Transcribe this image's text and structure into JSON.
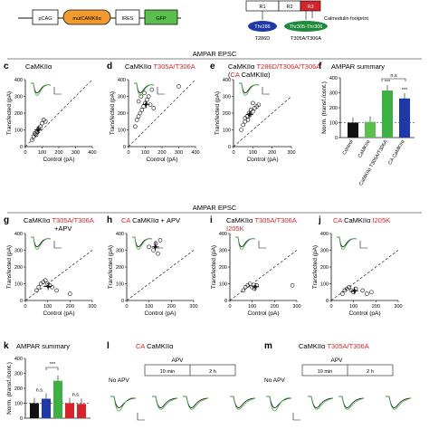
{
  "construct": {
    "boxes": [
      "pCAG",
      "mutCAMKIIα",
      "IRES",
      "GFP"
    ],
    "domain_labels": [
      "R1",
      "R2",
      "R3"
    ],
    "footprint_label": "Calmodulin footprint",
    "thr286": "Thr286",
    "t286d": "T286D",
    "thr305": "Thr305-Thr306",
    "t305": "T305A/T306A",
    "colors": {
      "pcag": "#ffffff",
      "mut": "#f29a2e",
      "gfp": "#5bbf4e",
      "r3": "#d9232a",
      "thr286": "#1f3aa8",
      "thr305": "#1f8a3c"
    }
  },
  "section1_title": "AMPAR EPSC",
  "section2_title": "AMPAR EPSC",
  "panels": {
    "c": {
      "letter": "c",
      "title": "CaMKIIα",
      "title_red": "",
      "title_suffix": ""
    },
    "d": {
      "letter": "d",
      "title": "CaMKIIα ",
      "title_red": "T305A/T306A",
      "title_suffix": ""
    },
    "e": {
      "letter": "e",
      "title": "CaMKIIα ",
      "title_red": "T286D/T306A/T306A",
      "title_suffix": "",
      "line2_prefix": "(",
      "line2_red": "CA",
      "line2_suffix": " CaMKIIα)"
    },
    "f": {
      "letter": "f",
      "title": "AMPAR summary"
    },
    "g": {
      "letter": "g",
      "title": "CaMKIIα ",
      "title_red": "T305A/T306A",
      "line2": "+APV"
    },
    "h": {
      "letter": "h",
      "title_red": "CA",
      "title": " CaMKIIα + APV"
    },
    "i": {
      "letter": "i",
      "title": "CaMKIIα ",
      "title_red": "T305A/T306A",
      "line2_red": "I205K"
    },
    "j": {
      "letter": "j",
      "title_red": "CA",
      "title": " CaMKIIα ",
      "title_red2": "I205K"
    },
    "k": {
      "letter": "k",
      "title": "AMPAR summary"
    },
    "l": {
      "letter": "l",
      "title_red": "CA",
      "title": " CaMKIIα"
    },
    "m": {
      "letter": "m",
      "title": "CaMKIIα ",
      "title_red": "T305A/T306A"
    }
  },
  "axes": {
    "ylabel": "Transfected (pA)",
    "xlabel": "Control (pA)",
    "ticks": [
      "0",
      "100",
      "200",
      "300",
      "400"
    ],
    "ticks_short": [
      "0",
      "100",
      "200",
      "300"
    ],
    "bar_ylabel": "Norm. (transf./cont.)",
    "bar_ticks": [
      "0",
      "100",
      "200",
      "300",
      "400"
    ]
  },
  "summary_f": {
    "categories": [
      "Control",
      "CaMKIIα",
      "CaMKIIα T305A/T306A",
      "CA CaMKIIα"
    ],
    "values": [
      100,
      105,
      315,
      262
    ],
    "colors": [
      "#111111",
      "#5bbf4e",
      "#3cb043",
      "#1f3aa8"
    ],
    "stars": [
      "",
      "",
      "***",
      "***"
    ],
    "ns": "n.s"
  },
  "summary_k": {
    "values": [
      100,
      130,
      250,
      100,
      95
    ],
    "colors": [
      "#111111",
      "#1f3aa8",
      "#3cb043",
      "#d9232a",
      "#d9232a"
    ],
    "stars": [
      "",
      "",
      "***",
      "",
      ""
    ],
    "ns1": "n.s.",
    "ns2": "n.s.",
    "sig": "***"
  },
  "apv": {
    "no_apv": "No APV",
    "apv": "APV",
    "t10": "10 min",
    "t2h": "2 h"
  },
  "chart_data": [
    {
      "type": "scatter",
      "panel": "c",
      "xlabel": "Control (pA)",
      "ylabel": "Transfected (pA)",
      "xlim": [
        0,
        400
      ],
      "ylim": [
        0,
        400
      ],
      "x": [
        40,
        50,
        60,
        70,
        75,
        80,
        90,
        100,
        110,
        120,
        55,
        65
      ],
      "y": [
        40,
        60,
        75,
        90,
        100,
        110,
        120,
        140,
        160,
        150,
        80,
        70
      ]
    },
    {
      "type": "scatter",
      "panel": "d",
      "xlabel": "Control (pA)",
      "ylabel": "Transfected (pA)",
      "xlim": [
        0,
        400
      ],
      "ylim": [
        0,
        400
      ],
      "x": [
        40,
        50,
        60,
        70,
        80,
        90,
        100,
        110,
        120,
        130,
        150,
        60,
        75,
        95,
        140,
        300
      ],
      "y": [
        120,
        160,
        180,
        200,
        220,
        240,
        260,
        280,
        300,
        250,
        230,
        270,
        300,
        320,
        340,
        360
      ]
    },
    {
      "type": "scatter",
      "panel": "e",
      "xlabel": "Control (pA)",
      "ylabel": "Transfected (pA)",
      "xlim": [
        0,
        300
      ],
      "ylim": [
        0,
        400
      ],
      "x": [
        40,
        50,
        60,
        70,
        80,
        90,
        100,
        110,
        120,
        130,
        60,
        75,
        85,
        100
      ],
      "y": [
        100,
        130,
        150,
        180,
        200,
        220,
        210,
        230,
        240,
        250,
        170,
        160,
        190,
        260
      ]
    },
    {
      "type": "bar",
      "panel": "f",
      "categories": [
        "Control",
        "CaMKIIα",
        "CaMKIIα T305A/T306A",
        "CA CaMKIIα"
      ],
      "values": [
        100,
        105,
        315,
        262
      ],
      "ylim": [
        0,
        400
      ]
    },
    {
      "type": "scatter",
      "panel": "g",
      "xlim": [
        0,
        300
      ],
      "ylim": [
        0,
        400
      ],
      "x": [
        50,
        60,
        70,
        80,
        90,
        100,
        110,
        120,
        140,
        200
      ],
      "y": [
        60,
        80,
        100,
        110,
        120,
        100,
        90,
        80,
        60,
        40
      ]
    },
    {
      "type": "scatter",
      "panel": "h",
      "xlim": [
        0,
        300
      ],
      "ylim": [
        0,
        400
      ],
      "x": [
        100,
        120,
        130,
        140,
        150
      ],
      "y": [
        320,
        300,
        340,
        280,
        360
      ]
    },
    {
      "type": "scatter",
      "panel": "i",
      "xlim": [
        0,
        300
      ],
      "ylim": [
        0,
        400
      ],
      "x": [
        60,
        70,
        80,
        90,
        100,
        110,
        120,
        280
      ],
      "y": [
        60,
        80,
        90,
        100,
        80,
        70,
        90,
        90
      ]
    },
    {
      "type": "scatter",
      "panel": "j",
      "xlim": [
        0,
        300
      ],
      "ylim": [
        0,
        400
      ],
      "x": [
        50,
        60,
        70,
        80,
        90,
        100,
        110,
        140,
        160,
        180
      ],
      "y": [
        40,
        60,
        70,
        80,
        60,
        50,
        70,
        60,
        40,
        50
      ]
    },
    {
      "type": "bar",
      "panel": "k",
      "values": [
        100,
        130,
        250,
        100,
        95
      ],
      "ylim": [
        0,
        400
      ]
    }
  ]
}
